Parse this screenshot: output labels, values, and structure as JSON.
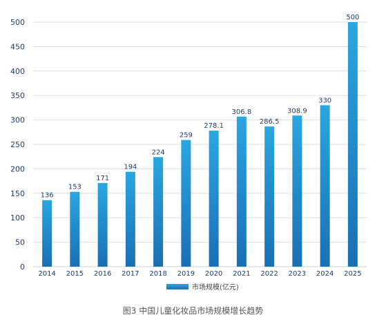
{
  "chart_data": {
    "type": "bar",
    "categories": [
      "2014",
      "2015",
      "2016",
      "2017",
      "2018",
      "2019",
      "2020",
      "2021",
      "2022",
      "2023",
      "2024",
      "2025"
    ],
    "series": [
      {
        "name": "市场规模(亿元)",
        "values": [
          136,
          153,
          171,
          194,
          224,
          259,
          278.1,
          306.8,
          286.5,
          308.9,
          330,
          500
        ]
      }
    ],
    "data_labels": [
      "136",
      "153",
      "171",
      "194",
      "224",
      "259",
      "278.1",
      "306.8",
      "286.5",
      "308.9",
      "330",
      "500"
    ],
    "ylim": [
      0,
      500
    ],
    "yticks": [
      0,
      50,
      100,
      150,
      200,
      250,
      300,
      350,
      400,
      450,
      500
    ],
    "grid": true,
    "legend_position": "bottom",
    "bar_color_top": "#2aa6e0",
    "bar_color_bottom": "#1a6fb5",
    "title": "图3 中国儿童化妆品市场规模增长趋势"
  }
}
